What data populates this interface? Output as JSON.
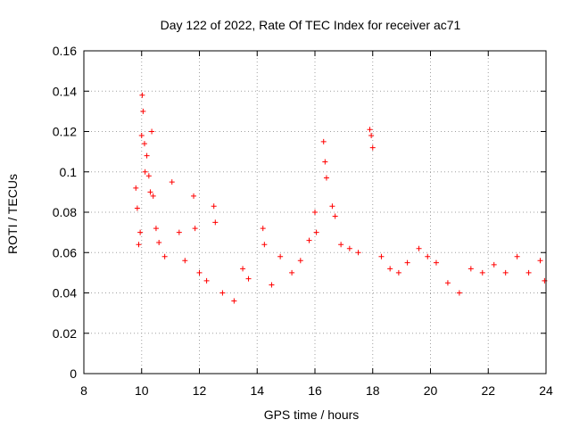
{
  "chart_data": {
    "type": "scatter",
    "title": "Day 122 of 2022, Rate Of TEC Index for receiver ac71",
    "xlabel": "GPS time / hours",
    "ylabel": "ROTI / TECUs",
    "xlim": [
      8,
      24
    ],
    "ylim": [
      0,
      0.16
    ],
    "x_ticks": [
      8,
      10,
      12,
      14,
      16,
      18,
      20,
      22,
      24
    ],
    "x_tick_labels": [
      "8",
      "10",
      "12",
      "14",
      "16",
      "18",
      "20",
      "22",
      "24"
    ],
    "y_ticks": [
      0,
      0.02,
      0.04,
      0.06,
      0.08,
      0.1,
      0.12,
      0.14,
      0.16
    ],
    "y_tick_labels": [
      "0",
      "0.02",
      "0.04",
      "0.06",
      "0.08",
      "0.1",
      "0.12",
      "0.14",
      "0.16"
    ],
    "grid": true,
    "marker": "+",
    "color": "#ff0000",
    "series": [
      {
        "name": "ROTI",
        "points": [
          [
            9.8,
            0.092
          ],
          [
            9.85,
            0.082
          ],
          [
            9.9,
            0.064
          ],
          [
            9.95,
            0.07
          ],
          [
            10.0,
            0.118
          ],
          [
            10.02,
            0.138
          ],
          [
            10.05,
            0.13
          ],
          [
            10.1,
            0.114
          ],
          [
            10.12,
            0.1
          ],
          [
            10.18,
            0.108
          ],
          [
            10.25,
            0.098
          ],
          [
            10.3,
            0.09
          ],
          [
            10.35,
            0.12
          ],
          [
            10.4,
            0.088
          ],
          [
            10.5,
            0.072
          ],
          [
            10.6,
            0.065
          ],
          [
            10.8,
            0.058
          ],
          [
            11.05,
            0.095
          ],
          [
            11.3,
            0.07
          ],
          [
            11.5,
            0.056
          ],
          [
            11.8,
            0.088
          ],
          [
            11.85,
            0.072
          ],
          [
            12.0,
            0.05
          ],
          [
            12.25,
            0.046
          ],
          [
            12.5,
            0.083
          ],
          [
            12.55,
            0.075
          ],
          [
            12.8,
            0.04
          ],
          [
            13.2,
            0.036
          ],
          [
            13.5,
            0.052
          ],
          [
            13.7,
            0.047
          ],
          [
            14.2,
            0.072
          ],
          [
            14.25,
            0.064
          ],
          [
            14.5,
            0.044
          ],
          [
            14.8,
            0.058
          ],
          [
            15.2,
            0.05
          ],
          [
            15.5,
            0.056
          ],
          [
            15.8,
            0.066
          ],
          [
            16.0,
            0.08
          ],
          [
            16.05,
            0.07
          ],
          [
            16.3,
            0.115
          ],
          [
            16.35,
            0.105
          ],
          [
            16.4,
            0.097
          ],
          [
            16.6,
            0.083
          ],
          [
            16.7,
            0.078
          ],
          [
            16.9,
            0.064
          ],
          [
            17.2,
            0.062
          ],
          [
            17.5,
            0.06
          ],
          [
            17.9,
            0.121
          ],
          [
            17.95,
            0.118
          ],
          [
            18.0,
            0.112
          ],
          [
            18.3,
            0.058
          ],
          [
            18.6,
            0.052
          ],
          [
            18.9,
            0.05
          ],
          [
            19.2,
            0.055
          ],
          [
            19.6,
            0.062
          ],
          [
            19.9,
            0.058
          ],
          [
            20.2,
            0.055
          ],
          [
            20.6,
            0.045
          ],
          [
            21.0,
            0.04
          ],
          [
            21.4,
            0.052
          ],
          [
            21.8,
            0.05
          ],
          [
            22.2,
            0.054
          ],
          [
            22.6,
            0.05
          ],
          [
            23.0,
            0.058
          ],
          [
            23.4,
            0.05
          ],
          [
            23.8,
            0.056
          ],
          [
            23.95,
            0.046
          ]
        ]
      }
    ]
  }
}
